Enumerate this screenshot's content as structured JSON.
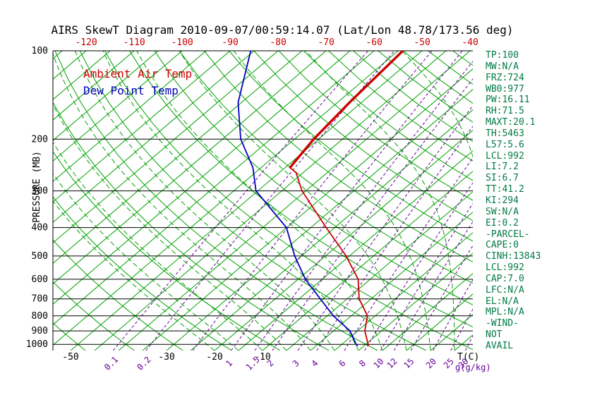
{
  "chart_data": {
    "type": "line",
    "variant": "skew-t-log-p",
    "title": "AIRS SkewT Diagram 2010-09-07/00:59:14.07 (Lat/Lon 48.78/173.56 deg)",
    "ylabel": "PRESSURE (MB)",
    "xlabel": "T(C)",
    "mixing_ratio_units": "g(g/kg)",
    "pressure_range": [
      100,
      1050
    ],
    "pressure_ticks": [
      100,
      200,
      300,
      400,
      500,
      600,
      700,
      800,
      900,
      1000
    ],
    "top_temp_ticks_c": [
      -120,
      -110,
      -100,
      -90,
      -80,
      -70,
      -60,
      -50,
      -40
    ],
    "bottom_temp_ticks_c": [
      -50,
      -30,
      -20,
      -10
    ],
    "isotherms_c": {
      "min": -130,
      "max": 45,
      "step": 5
    },
    "dry_adiabats_theta_c": {
      "min": -60,
      "max": 200,
      "step": 10
    },
    "moist_adiabats_start_c": {
      "min": -20,
      "max": 45,
      "step": 5
    },
    "mixing_ratio_lines_gkg": [
      0.1,
      0.2,
      0.5,
      1,
      1.5,
      2,
      3,
      4,
      6,
      8,
      10,
      12,
      15,
      20,
      25,
      30
    ],
    "mixing_ratio_labels_gkg": [
      0.1,
      0.2,
      1,
      1.5,
      2,
      3,
      4,
      6,
      8,
      10,
      12,
      15,
      20,
      25,
      30
    ],
    "series": [
      {
        "name": "Ambient Air Temp",
        "color": "#CC0000",
        "thick_above_mb": 250,
        "points_p_t": [
          [
            1013,
            11
          ],
          [
            1000,
            10.5
          ],
          [
            900,
            6.5
          ],
          [
            800,
            3.4
          ],
          [
            700,
            -2.5
          ],
          [
            600,
            -7.5
          ],
          [
            500,
            -15.7
          ],
          [
            400,
            -26.8
          ],
          [
            300,
            -40.8
          ],
          [
            260,
            -46.5
          ],
          [
            250,
            -49
          ],
          [
            200,
            -51
          ],
          [
            150,
            -52.5
          ],
          [
            100,
            -54
          ]
        ]
      },
      {
        "name": "Dew Point Temp",
        "color": "#0000BB",
        "points_p_t": [
          [
            1013,
            8.7
          ],
          [
            1000,
            8
          ],
          [
            900,
            3.4
          ],
          [
            800,
            -3.7
          ],
          [
            700,
            -10.6
          ],
          [
            600,
            -18.5
          ],
          [
            500,
            -26.4
          ],
          [
            400,
            -35.1
          ],
          [
            300,
            -50.4
          ],
          [
            250,
            -56.7
          ],
          [
            200,
            -66.2
          ],
          [
            150,
            -75.7
          ],
          [
            100,
            -85.7
          ]
        ]
      }
    ],
    "colors": {
      "grid_green": "#00A000",
      "mixing_purple": "#660099",
      "top_ticks_red": "#CC0000",
      "axis_black": "#000000",
      "panel_green": "#007A45"
    }
  },
  "side_panel": {
    "items": [
      "TP:100",
      "MW:N/A",
      "FRZ:724",
      "WB0:977",
      "PW:16.11",
      "RH:71.5",
      "MAXT:20.1",
      "TH:5463",
      "L57:5.6",
      "LCL:992",
      "LI:7.2",
      "SI:6.7",
      "TT:41.2",
      "KI:294",
      "SW:N/A",
      "EI:0.2",
      "-PARCEL-",
      "CAPE:0",
      "CINH:13843",
      "LCL:992",
      "CAP:7.0",
      "LFC:N/A",
      "EL:N/A",
      "MPL:N/A",
      "-WIND-",
      "NOT",
      "AVAIL"
    ]
  }
}
